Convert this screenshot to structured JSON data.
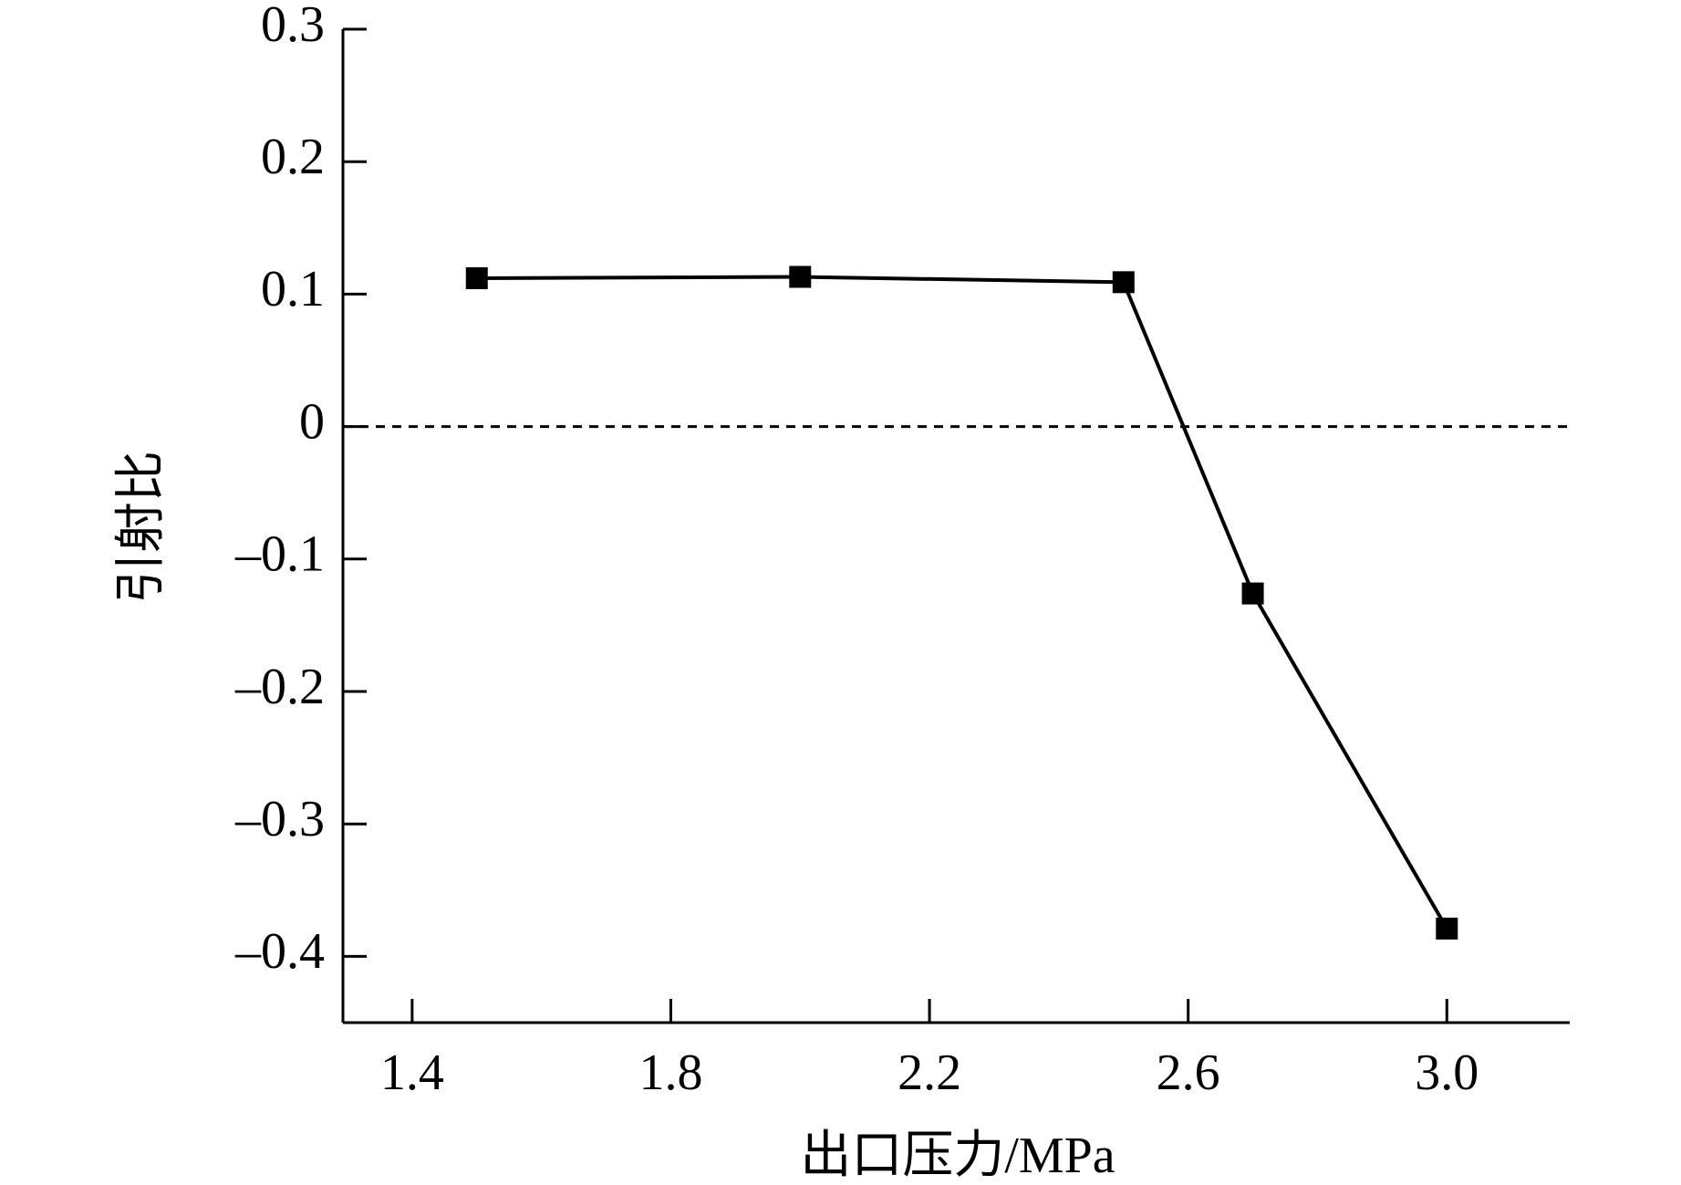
{
  "chart_data": {
    "type": "line",
    "x_label": "出口压力/MPa",
    "y_label": "引射比",
    "x": [
      1.5,
      2.0,
      2.5,
      2.7,
      3.0
    ],
    "series": [
      {
        "color": "#000000",
        "marker": "square",
        "values": [
          0.112,
          0.113,
          0.109,
          -0.126,
          -0.379
        ]
      }
    ],
    "xlim": [
      1.293,
      3.19
    ],
    "ylim": [
      -0.45,
      0.3
    ],
    "xticks": [
      1.4,
      1.8,
      2.2,
      2.6,
      {
        "value": 3.0,
        "label": "3.0"
      }
    ],
    "yticks": [
      0.3,
      0.2,
      0.1,
      0,
      {
        "value": -0.1,
        "label": "–0.1"
      },
      {
        "value": -0.2,
        "label": "–0.2"
      },
      {
        "value": -0.3,
        "label": "–0.3"
      },
      {
        "value": -0.4,
        "label": "–0.4"
      }
    ],
    "reference_line": 0,
    "grid": false
  }
}
